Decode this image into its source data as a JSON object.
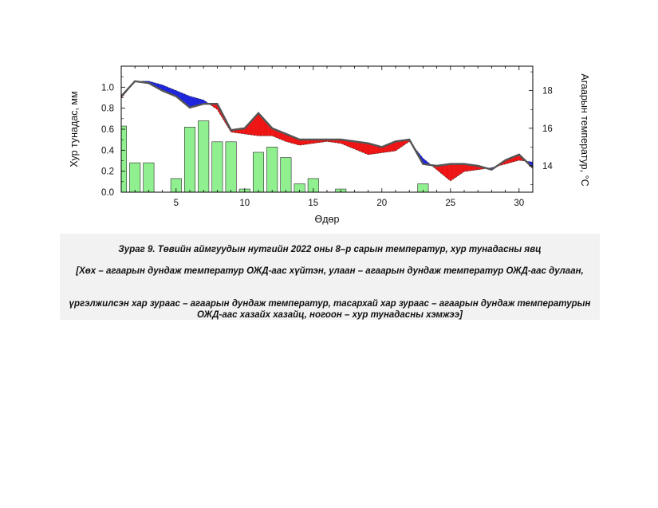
{
  "chart_data": {
    "type": "bar+line",
    "xlabel": "Өдөр",
    "ylabel_left": "Хур тунадас, мм",
    "ylabel_right": "Агаарын температур, °С",
    "x_ticks": [
      5,
      10,
      15,
      20,
      25,
      30
    ],
    "y_left_ticks": [
      "0.0",
      "0.2",
      "0.4",
      "0.6",
      "0.8",
      "1.0"
    ],
    "y_right_ticks": [
      "14",
      "16",
      "18"
    ],
    "xlim": [
      1,
      31
    ],
    "ylim_left": [
      0,
      1.2
    ],
    "ylim_right": [
      12.6,
      19.3
    ],
    "days": [
      1,
      2,
      3,
      4,
      5,
      6,
      7,
      8,
      9,
      10,
      11,
      12,
      13,
      14,
      15,
      16,
      17,
      18,
      19,
      20,
      21,
      22,
      23,
      24,
      25,
      26,
      27,
      28,
      29,
      30,
      31
    ],
    "precipitation": [
      0.63,
      0.28,
      0.28,
      0,
      0.13,
      0.62,
      0.68,
      0.48,
      0.48,
      0.03,
      0.38,
      0.43,
      0.33,
      0.08,
      0.13,
      0,
      0.03,
      0,
      0,
      0,
      0,
      0,
      0.08,
      0,
      0,
      0,
      0,
      0,
      0,
      0,
      0
    ],
    "temperature": [
      17.7,
      18.5,
      18.4,
      18.0,
      17.7,
      17.1,
      17.3,
      17.3,
      15.9,
      16.0,
      16.8,
      16.0,
      15.7,
      15.4,
      15.4,
      15.4,
      15.4,
      15.3,
      15.2,
      15.0,
      15.3,
      15.4,
      14.1,
      14.0,
      14.1,
      14.1,
      14.0,
      13.8,
      14.3,
      14.6,
      13.9
    ],
    "norm_temperature": [
      17.6,
      18.5,
      18.5,
      18.3,
      18.0,
      17.7,
      17.5,
      17.0,
      15.8,
      15.7,
      15.6,
      15.6,
      15.3,
      15.1,
      15.2,
      15.3,
      15.2,
      14.9,
      14.6,
      14.7,
      14.8,
      15.3,
      14.4,
      13.8,
      13.2,
      13.7,
      13.8,
      13.9,
      14.1,
      14.3,
      14.2
    ],
    "colors": {
      "precipitation": "#90f090",
      "precipitation_edge": "#2a2a2a",
      "warm": "#ee1111",
      "cold": "#1a22dd",
      "temperature_line": "#555555"
    }
  },
  "caption": {
    "title": "Зураг 9. Төвийн аймгуудын нутгийн 2022 оны 8–р сарын температур, хур тунадасны явц",
    "legend_line1": "[Хөх – агаарын дундаж температур ОЖД-аас хүйтэн, улаан – агаарын дундаж температур ОЖД-аас дулаан,",
    "legend_line2": "үргэлжилсэн хар зураас – агаарын дундаж температур, тасархай хар зураас – агаарын дундаж температурын ОЖД-аас хазайх хазайц, ногоон – хур тунадасны хэмжээ]"
  }
}
